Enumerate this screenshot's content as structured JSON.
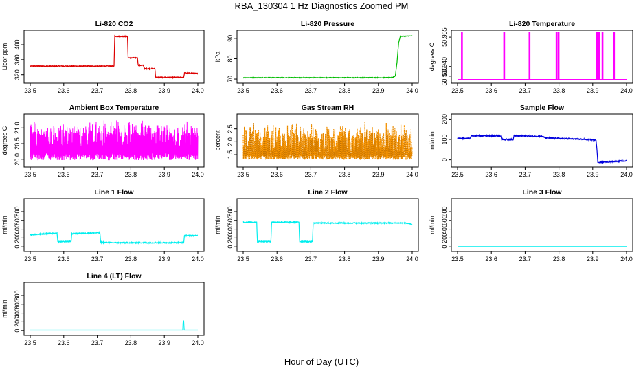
{
  "figure": {
    "title": "RBA_130304  1 Hz Diagnostics Zoomed PM",
    "xlabel": "Hour of Day (UTC)"
  },
  "colors": {
    "red": "#dd0000",
    "green": "#00bb00",
    "magenta": "#ff00ff",
    "orange": "#ff9900",
    "blue": "#0000dd",
    "cyan": "#00eeee"
  },
  "chart_data": [
    {
      "type": "line",
      "title": "Li-820 CO2",
      "ylabel": "Licor ppm",
      "color_key": "red",
      "style": "noisy",
      "noise": 1.2,
      "xlim": [
        23.5,
        24.0
      ],
      "ylim": [
        303,
        433
      ],
      "x_ticks": [
        "23.5",
        "23.6",
        "23.7",
        "23.8",
        "23.9",
        "24.0"
      ],
      "y_ticks": [
        {
          "v": 320,
          "label": "320"
        },
        {
          "v": 360,
          "label": "360"
        },
        {
          "v": 400,
          "label": "400"
        }
      ],
      "series": [
        {
          "x": 23.5,
          "y": 343
        },
        {
          "x": 23.75,
          "y": 343
        },
        {
          "x": 23.752,
          "y": 422
        },
        {
          "x": 23.79,
          "y": 422
        },
        {
          "x": 23.792,
          "y": 365
        },
        {
          "x": 23.82,
          "y": 365
        },
        {
          "x": 23.822,
          "y": 345
        },
        {
          "x": 23.838,
          "y": 345
        },
        {
          "x": 23.84,
          "y": 336
        },
        {
          "x": 23.872,
          "y": 336
        },
        {
          "x": 23.874,
          "y": 313
        },
        {
          "x": 23.958,
          "y": 313
        },
        {
          "x": 23.96,
          "y": 325
        },
        {
          "x": 24.0,
          "y": 323
        }
      ]
    },
    {
      "type": "line",
      "title": "Li-820 Pressure",
      "ylabel": "kPa",
      "color_key": "green",
      "style": "noisy",
      "noise": 0.15,
      "xlim": [
        23.5,
        24.0
      ],
      "ylim": [
        69,
        93
      ],
      "x_ticks": [
        "23.5",
        "23.6",
        "23.7",
        "23.8",
        "23.9",
        "24.0"
      ],
      "y_ticks": [
        {
          "v": 70,
          "label": "70"
        },
        {
          "v": 80,
          "label": "80"
        },
        {
          "v": 90,
          "label": "90"
        }
      ],
      "series": [
        {
          "x": 23.5,
          "y": 70.7
        },
        {
          "x": 23.94,
          "y": 70.7
        },
        {
          "x": 23.95,
          "y": 71.5
        },
        {
          "x": 23.955,
          "y": 78
        },
        {
          "x": 23.96,
          "y": 88
        },
        {
          "x": 23.965,
          "y": 91
        },
        {
          "x": 24.0,
          "y": 91.2
        }
      ]
    },
    {
      "type": "line",
      "title": "Li-820 Temperature",
      "ylabel": "degrees C",
      "color_key": "magenta",
      "style": "spikes",
      "xlim": [
        23.5,
        24.0
      ],
      "ylim": [
        50.9325,
        50.9575
      ],
      "x_ticks": [
        "23.5",
        "23.6",
        "23.7",
        "23.8",
        "23.9",
        "24.0"
      ],
      "y_ticks": [
        {
          "v": 50.935,
          "label": "50.935"
        },
        {
          "v": 50.94,
          "label": "50.940"
        },
        {
          "v": 50.955,
          "label": "50.955"
        }
      ],
      "baseline": 50.9333,
      "spike_top": 50.9575,
      "spikes": [
        23.513,
        23.638,
        23.713,
        23.793,
        23.799,
        23.913,
        23.919,
        23.929,
        23.963
      ]
    },
    {
      "type": "line",
      "title": "Ambient Box Temperature",
      "ylabel": "degrees C",
      "color_key": "magenta",
      "style": "dense",
      "xlim": [
        23.5,
        24.0
      ],
      "ylim": [
        19.82,
        21.38
      ],
      "x_ticks": [
        "23.5",
        "23.6",
        "23.7",
        "23.8",
        "23.9",
        "24.0"
      ],
      "y_ticks": [
        {
          "v": 20.0,
          "label": "20.0"
        },
        {
          "v": 20.5,
          "label": "20.5"
        },
        {
          "v": 21.0,
          "label": "21.0"
        }
      ],
      "center": 20.45,
      "low_band": [
        19.97,
        20.2
      ],
      "high_band": [
        20.7,
        21.28
      ]
    },
    {
      "type": "line",
      "title": "Gas Stream RH",
      "ylabel": "percent",
      "color_key": "orange",
      "style": "dense_dotted",
      "xlim": [
        23.5,
        24.0
      ],
      "ylim": [
        1.1,
        3.0
      ],
      "x_ticks": [
        "23.5",
        "23.6",
        "23.7",
        "23.8",
        "23.9",
        "24.0"
      ],
      "y_ticks": [
        {
          "v": 1.5,
          "label": "1.5"
        },
        {
          "v": 2.0,
          "label": "2.0"
        },
        {
          "v": 2.5,
          "label": "2.5"
        }
      ],
      "center": 1.65,
      "low_band": [
        1.3,
        1.5
      ],
      "high_band": [
        2.0,
        2.8
      ]
    },
    {
      "type": "line",
      "title": "Sample Flow",
      "ylabel": "ml/min",
      "color_key": "blue",
      "style": "noisy",
      "noise": 3,
      "xlim": [
        23.5,
        24.0
      ],
      "ylim": [
        -25,
        215
      ],
      "x_ticks": [
        "23.5",
        "23.6",
        "23.7",
        "23.8",
        "23.9",
        "24.0"
      ],
      "y_ticks": [
        {
          "v": 0,
          "label": "0"
        },
        {
          "v": 100,
          "label": "100"
        },
        {
          "v": 200,
          "label": "200"
        }
      ],
      "series": [
        {
          "x": 23.5,
          "y": 105
        },
        {
          "x": 23.538,
          "y": 105
        },
        {
          "x": 23.54,
          "y": 118
        },
        {
          "x": 23.63,
          "y": 118
        },
        {
          "x": 23.632,
          "y": 100
        },
        {
          "x": 23.665,
          "y": 100
        },
        {
          "x": 23.667,
          "y": 118
        },
        {
          "x": 23.75,
          "y": 115
        },
        {
          "x": 23.76,
          "y": 108
        },
        {
          "x": 23.8,
          "y": 105
        },
        {
          "x": 23.85,
          "y": 102
        },
        {
          "x": 23.91,
          "y": 98
        },
        {
          "x": 23.912,
          "y": 60
        },
        {
          "x": 23.915,
          "y": -12
        },
        {
          "x": 24.0,
          "y": -5
        }
      ]
    },
    {
      "type": "line",
      "title": "Line 1 Flow",
      "ylabel": "ml/min",
      "color_key": "cyan",
      "style": "noisy",
      "noise": 12,
      "xlim": [
        23.5,
        24.0
      ],
      "ylim": [
        -60,
        1050
      ],
      "x_ticks": [
        "23.5",
        "23.6",
        "23.7",
        "23.8",
        "23.9",
        "24.0"
      ],
      "y_ticks": [
        {
          "v": 0,
          "label": "0"
        },
        {
          "v": 200,
          "label": "200"
        },
        {
          "v": 400,
          "label": "400"
        },
        {
          "v": 600,
          "label": "600"
        },
        {
          "v": 800,
          "label": "800"
        }
      ],
      "series": [
        {
          "x": 23.5,
          "y": 270
        },
        {
          "x": 23.53,
          "y": 290
        },
        {
          "x": 23.58,
          "y": 310
        },
        {
          "x": 23.582,
          "y": 120
        },
        {
          "x": 23.622,
          "y": 120
        },
        {
          "x": 23.624,
          "y": 300
        },
        {
          "x": 23.708,
          "y": 320
        },
        {
          "x": 23.71,
          "y": 100
        },
        {
          "x": 23.75,
          "y": 95
        },
        {
          "x": 23.958,
          "y": 95
        },
        {
          "x": 23.96,
          "y": 255
        },
        {
          "x": 24.0,
          "y": 255
        }
      ]
    },
    {
      "type": "line",
      "title": "Line 2 Flow",
      "ylabel": "ml/min",
      "color_key": "cyan",
      "style": "noisy",
      "noise": 12,
      "xlim": [
        23.5,
        24.0
      ],
      "ylim": [
        -60,
        1050
      ],
      "x_ticks": [
        "23.5",
        "23.6",
        "23.7",
        "23.8",
        "23.9",
        "24.0"
      ],
      "y_ticks": [
        {
          "v": 0,
          "label": "0"
        },
        {
          "v": 200,
          "label": "200"
        },
        {
          "v": 400,
          "label": "400"
        },
        {
          "v": 600,
          "label": "600"
        },
        {
          "v": 800,
          "label": "800"
        }
      ],
      "series": [
        {
          "x": 23.5,
          "y": 560
        },
        {
          "x": 23.54,
          "y": 560
        },
        {
          "x": 23.542,
          "y": 120
        },
        {
          "x": 23.582,
          "y": 120
        },
        {
          "x": 23.584,
          "y": 560
        },
        {
          "x": 23.665,
          "y": 560
        },
        {
          "x": 23.667,
          "y": 120
        },
        {
          "x": 23.705,
          "y": 120
        },
        {
          "x": 23.707,
          "y": 540
        },
        {
          "x": 23.98,
          "y": 540
        },
        {
          "x": 24.0,
          "y": 510
        }
      ]
    },
    {
      "type": "line",
      "title": "Line 3 Flow",
      "ylabel": "ml/min",
      "color_key": "cyan",
      "style": "flat",
      "xlim": [
        23.5,
        24.0
      ],
      "ylim": [
        -60,
        1050
      ],
      "x_ticks": [
        "23.5",
        "23.6",
        "23.7",
        "23.8",
        "23.9",
        "24.0"
      ],
      "y_ticks": [
        {
          "v": 0,
          "label": "0"
        },
        {
          "v": 200,
          "label": "200"
        },
        {
          "v": 400,
          "label": "400"
        },
        {
          "v": 600,
          "label": "600"
        },
        {
          "v": 800,
          "label": "800"
        }
      ],
      "series": [
        {
          "x": 23.5,
          "y": 5
        },
        {
          "x": 24.0,
          "y": 5
        }
      ]
    },
    {
      "type": "line",
      "title": "Line 4 (LT) Flow",
      "ylabel": "ml/min",
      "color_key": "cyan",
      "style": "flat",
      "xlim": [
        23.5,
        24.0
      ],
      "ylim": [
        -60,
        1050
      ],
      "x_ticks": [
        "23.5",
        "23.6",
        "23.7",
        "23.8",
        "23.9",
        "24.0"
      ],
      "y_ticks": [
        {
          "v": 0,
          "label": "0"
        },
        {
          "v": 200,
          "label": "200"
        },
        {
          "v": 400,
          "label": "400"
        },
        {
          "v": 600,
          "label": "600"
        },
        {
          "v": 800,
          "label": "800"
        }
      ],
      "series": [
        {
          "x": 23.5,
          "y": 10
        },
        {
          "x": 23.955,
          "y": 10
        },
        {
          "x": 23.956,
          "y": 220
        },
        {
          "x": 23.958,
          "y": 220
        },
        {
          "x": 23.959,
          "y": 10
        },
        {
          "x": 24.0,
          "y": 10
        }
      ]
    }
  ]
}
